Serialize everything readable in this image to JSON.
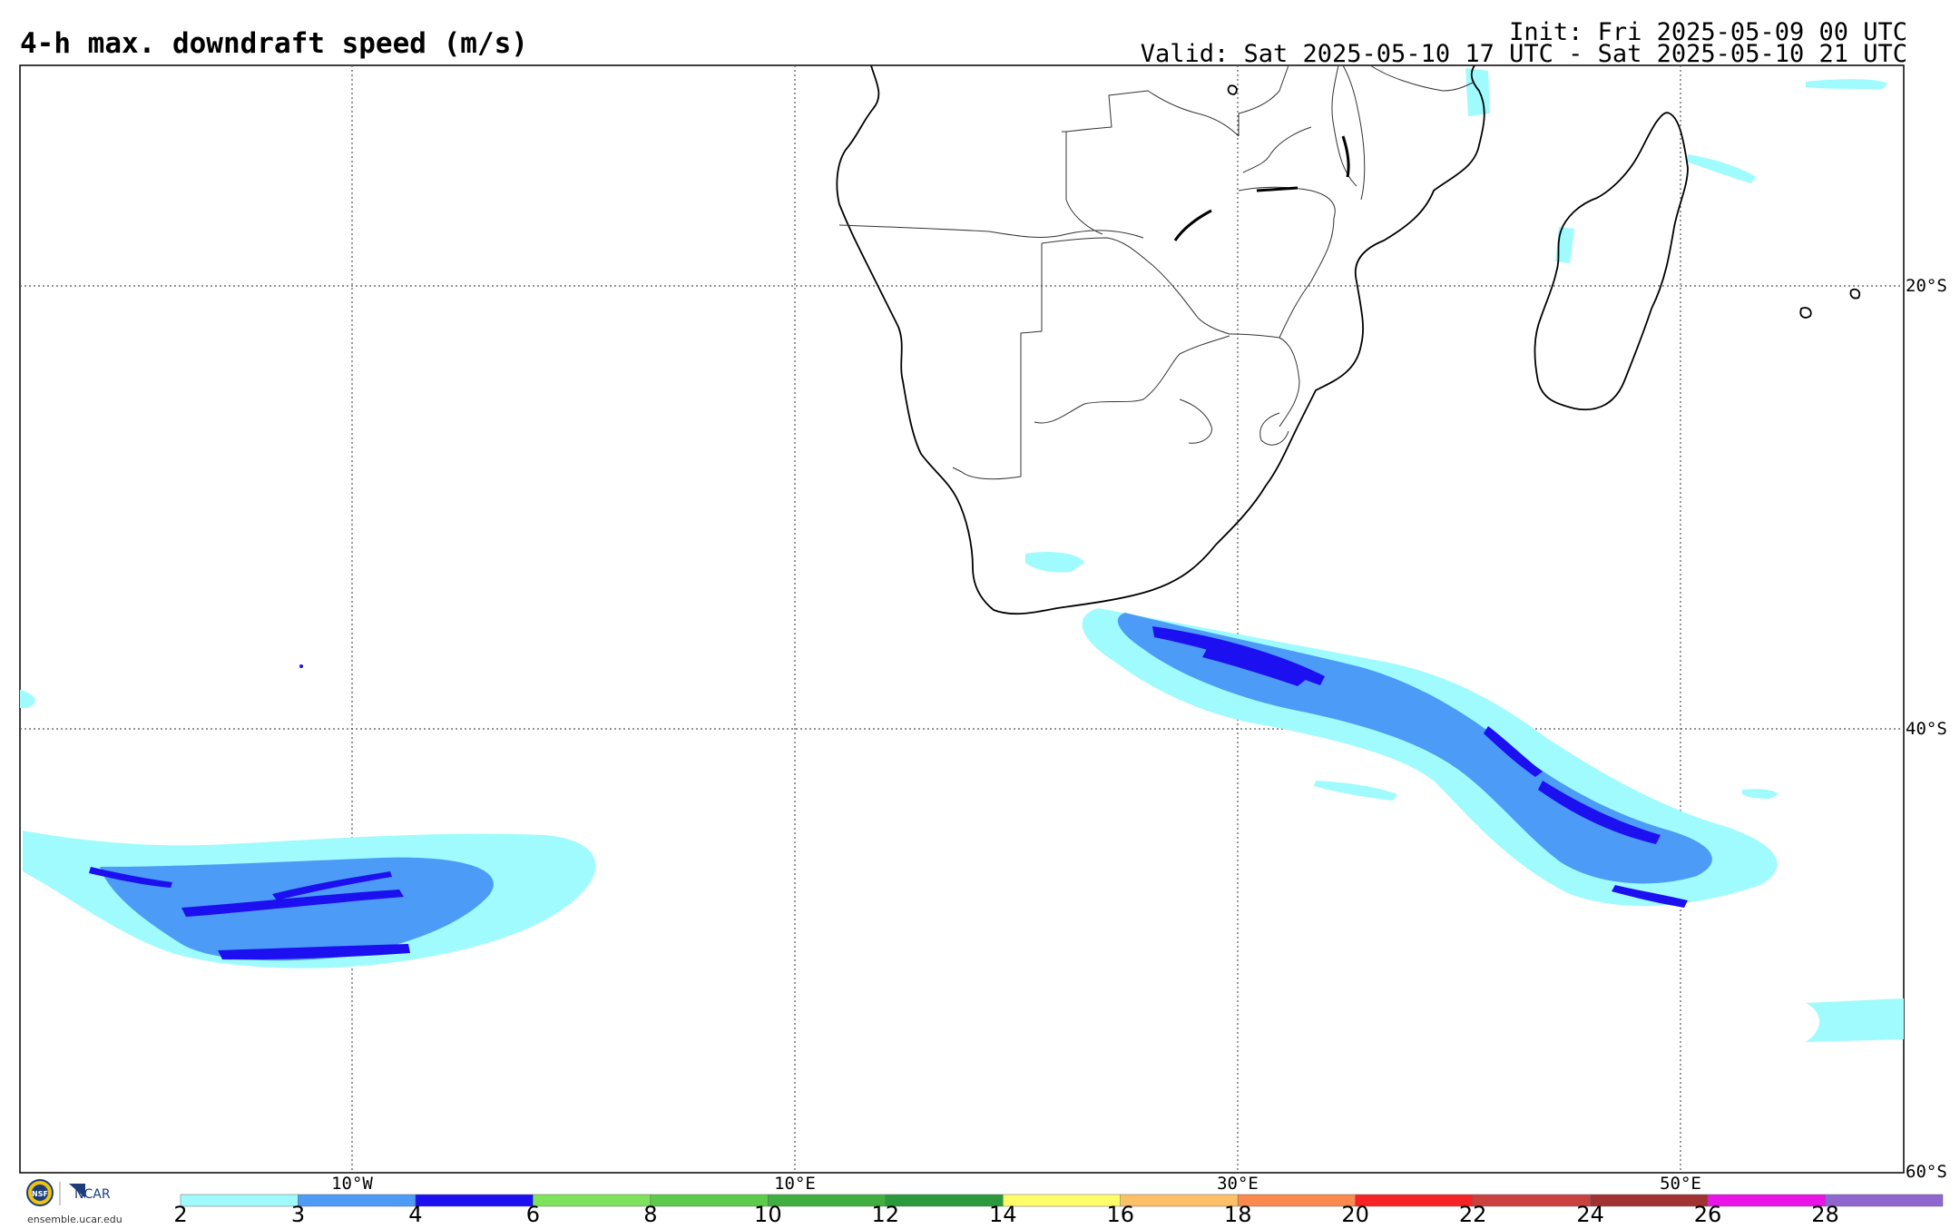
{
  "map": {
    "title": "4-h max. downdraft speed (m/s)",
    "init_text": "Init: Fri 2025-05-09 00 UTC",
    "valid_text": "Valid: Sat 2025-05-10 17 UTC - Sat 2025-05-10 21 UTC",
    "lon_labels": [
      "10°W",
      "10°E",
      "30°E",
      "50°E"
    ],
    "lat_labels": [
      "20°S",
      "40°S",
      "60°S"
    ]
  },
  "colorbar": {
    "ticks": [
      "2",
      "3",
      "4",
      "6",
      "8",
      "10",
      "12",
      "14",
      "16",
      "18",
      "20",
      "22",
      "24",
      "26",
      "28"
    ],
    "colors": [
      "#9ffbfd",
      "#4c9bf6",
      "#1c0ff0",
      "#7ee35c",
      "#5cca4a",
      "#3fb03f",
      "#2a9a3c",
      "#fffe6a",
      "#fdc067",
      "#fc8a4f",
      "#f72223",
      "#cb4140",
      "#a23232",
      "#ea12e6",
      "#8f66d0"
    ]
  },
  "logo": {
    "nsf": "NSF",
    "ncar": "NCAR",
    "url": "ensemble.ucar.edu"
  },
  "field_colors": {
    "light": "#9ffbfd",
    "mid": "#4c9bf6",
    "dark": "#1c0ff0"
  }
}
